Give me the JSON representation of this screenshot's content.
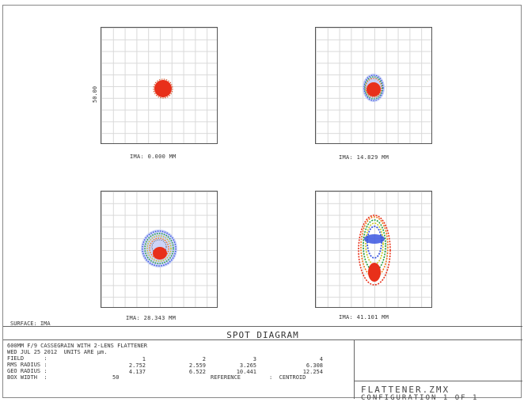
{
  "spots": [
    {
      "ima_label": "IMA: 0.000 MM",
      "pattern": "tight"
    },
    {
      "ima_label": "IMA: 14.829 MM",
      "pattern": "small-ring"
    },
    {
      "ima_label": "IMA: 28.343 MM",
      "pattern": "wide-ring"
    },
    {
      "ima_label": "IMA: 41.101 MM",
      "pattern": "elongated"
    }
  ],
  "scale_label": "50.00",
  "surface_label": "SURFACE: IMA",
  "title": "SPOT DIAGRAM",
  "info": {
    "line1": "600MM F/9 CASSEGRAIN WITH 2-LENS FLATTENER",
    "line2": "WED JUL 25 2012  UNITS ARE µm.",
    "rows": [
      {
        "label": "FIELD      :",
        "values": [
          "1",
          "2",
          "3",
          "4"
        ]
      },
      {
        "label": "RMS RADIUS :",
        "values": [
          "2.752",
          "2.559",
          "3.265",
          "6.308"
        ]
      },
      {
        "label": "GEO RADIUS :",
        "values": [
          "4.137",
          "6.522",
          "10.441",
          "12.254"
        ]
      }
    ],
    "box_width_label": "BOX WIDTH  :",
    "box_width_value": "50",
    "reference_label": "REFERENCE",
    "reference_value": ":  CENTROID"
  },
  "file_name": "FLATTENER.ZMX",
  "configuration": "CONFIGURATION 1 OF 1",
  "colors": {
    "red": "#e8301a",
    "blue": "#3a56e0",
    "green": "#1e9e3a",
    "orange": "#f07a1a",
    "yellow": "#c8c820"
  }
}
